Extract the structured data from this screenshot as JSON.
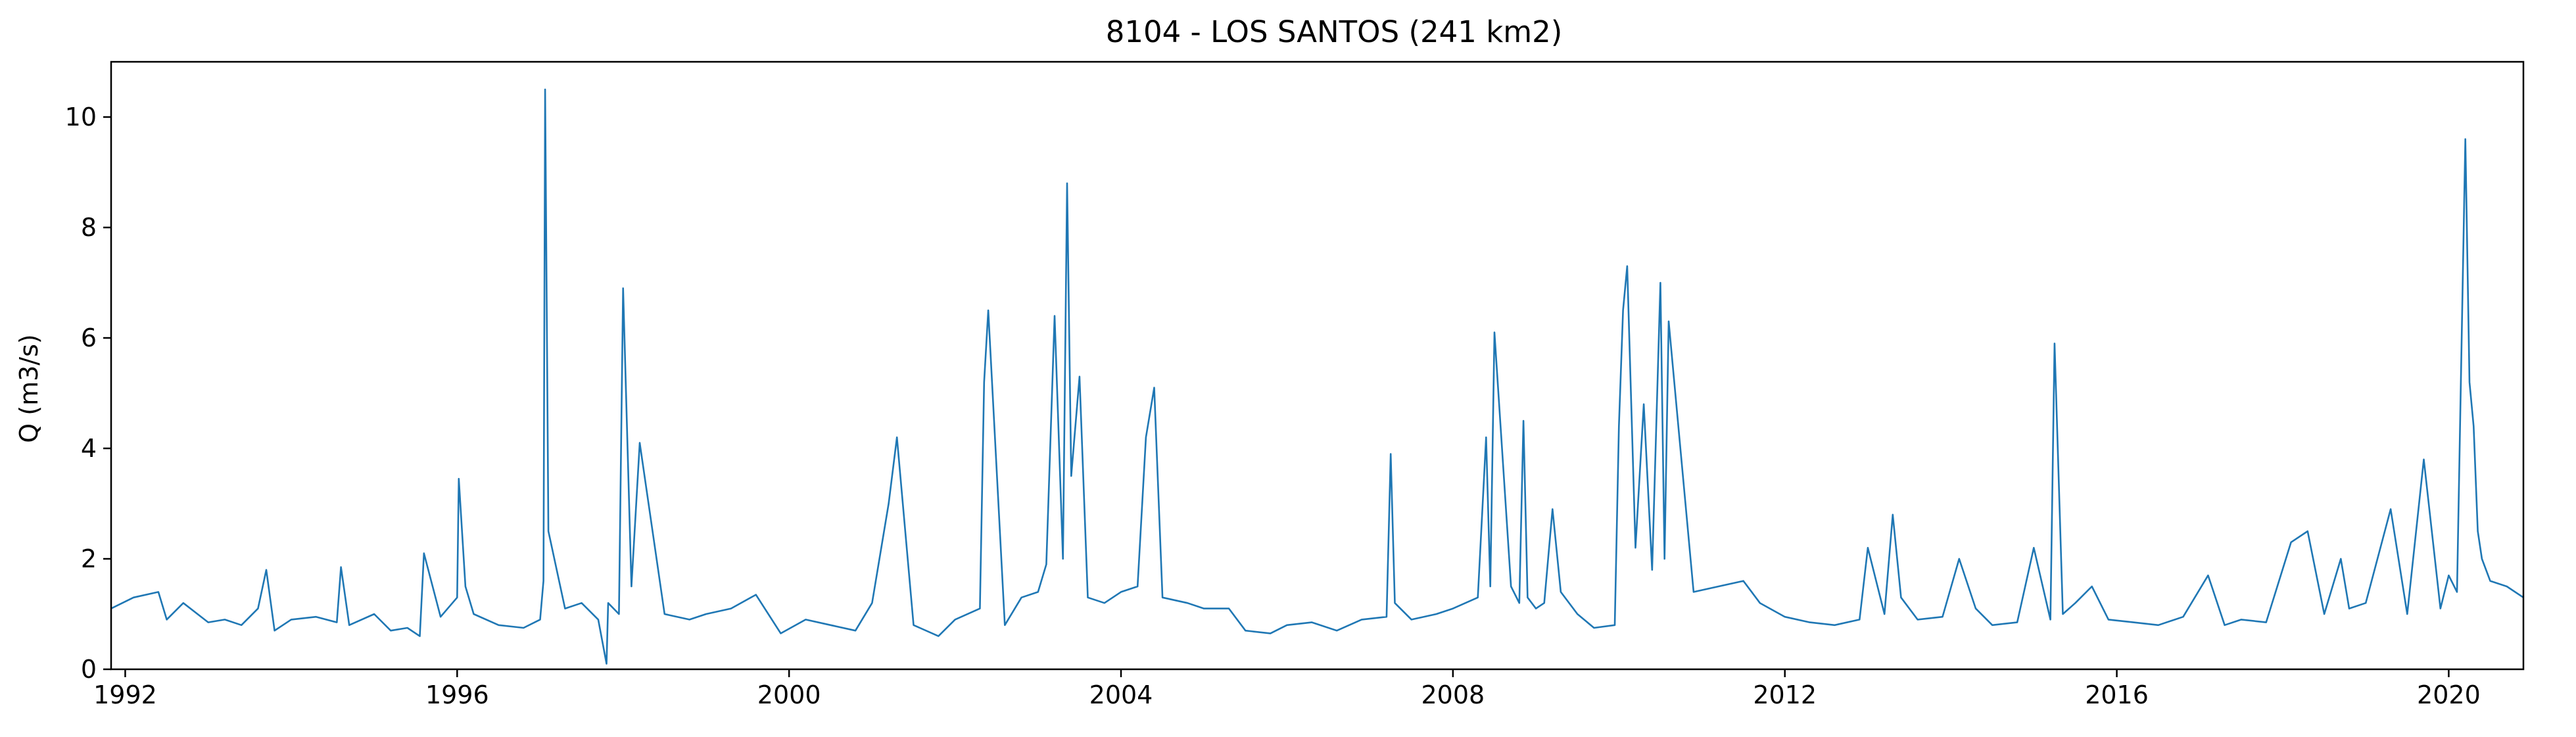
{
  "chart_data": {
    "type": "line",
    "title": "8104 - LOS SANTOS (241 km2)",
    "xlabel": "",
    "ylabel": "Q (m3/s)",
    "xlim": [
      1991.83,
      2020.9
    ],
    "ylim": [
      0,
      11
    ],
    "x_ticks": [
      1992,
      1996,
      2000,
      2004,
      2008,
      2012,
      2016,
      2020
    ],
    "y_ticks": [
      0,
      2,
      4,
      6,
      8,
      10
    ],
    "grid": false,
    "series": [
      {
        "name": "Q",
        "color": "#1f77b4",
        "x": [
          1991.83,
          1992.1,
          1992.4,
          1992.5,
          1992.7,
          1993.0,
          1993.2,
          1993.4,
          1993.6,
          1993.7,
          1993.8,
          1994.0,
          1994.3,
          1994.55,
          1994.6,
          1994.7,
          1995.0,
          1995.2,
          1995.4,
          1995.55,
          1995.6,
          1995.8,
          1996.0,
          1996.02,
          1996.1,
          1996.2,
          1996.5,
          1996.8,
          1997.0,
          1997.04,
          1997.06,
          1997.1,
          1997.3,
          1997.5,
          1997.7,
          1997.8,
          1997.82,
          1997.95,
          1998.0,
          1998.1,
          1998.2,
          1998.5,
          1998.8,
          1999.0,
          1999.3,
          1999.6,
          1999.9,
          2000.2,
          2000.5,
          2000.8,
          2001.0,
          2001.2,
          2001.3,
          2001.5,
          2001.8,
          2002.0,
          2002.3,
          2002.35,
          2002.4,
          2002.6,
          2002.8,
          2003.0,
          2003.1,
          2003.2,
          2003.3,
          2003.35,
          2003.4,
          2003.5,
          2003.6,
          2003.8,
          2004.0,
          2004.2,
          2004.3,
          2004.4,
          2004.5,
          2004.8,
          2005.0,
          2005.3,
          2005.5,
          2005.8,
          2006.0,
          2006.3,
          2006.6,
          2006.9,
          2007.2,
          2007.25,
          2007.3,
          2007.5,
          2007.8,
          2008.0,
          2008.3,
          2008.4,
          2008.45,
          2008.5,
          2008.7,
          2008.8,
          2008.85,
          2008.9,
          2009.0,
          2009.1,
          2009.2,
          2009.3,
          2009.5,
          2009.7,
          2009.95,
          2010.0,
          2010.05,
          2010.1,
          2010.2,
          2010.3,
          2010.4,
          2010.5,
          2010.55,
          2010.6,
          2010.9,
          2011.2,
          2011.5,
          2011.7,
          2012.0,
          2012.3,
          2012.6,
          2012.9,
          2013.0,
          2013.2,
          2013.3,
          2013.4,
          2013.6,
          2013.9,
          2014.1,
          2014.3,
          2014.5,
          2014.8,
          2015.0,
          2015.2,
          2015.25,
          2015.35,
          2015.5,
          2015.7,
          2015.9,
          2016.2,
          2016.5,
          2016.8,
          2017.1,
          2017.3,
          2017.5,
          2017.8,
          2018.1,
          2018.3,
          2018.5,
          2018.7,
          2018.8,
          2019.0,
          2019.3,
          2019.5,
          2019.7,
          2019.9,
          2020.0,
          2020.1,
          2020.2,
          2020.25,
          2020.3,
          2020.35,
          2020.4,
          2020.5,
          2020.7,
          2020.9
        ],
        "values": [
          1.1,
          1.3,
          1.4,
          0.9,
          1.2,
          0.85,
          0.9,
          0.8,
          1.1,
          1.8,
          0.7,
          0.9,
          0.95,
          0.85,
          1.85,
          0.8,
          1.0,
          0.7,
          0.75,
          0.6,
          2.1,
          0.95,
          1.3,
          3.45,
          1.5,
          1.0,
          0.8,
          0.75,
          0.9,
          1.6,
          10.5,
          2.5,
          1.1,
          1.2,
          0.9,
          0.1,
          1.2,
          1.0,
          6.9,
          1.5,
          4.1,
          1.0,
          0.9,
          1.0,
          1.1,
          1.35,
          0.65,
          0.9,
          0.8,
          0.7,
          1.2,
          3.0,
          4.2,
          0.8,
          0.6,
          0.9,
          1.1,
          5.2,
          6.5,
          0.8,
          1.3,
          1.4,
          1.9,
          6.4,
          2.0,
          8.8,
          3.5,
          5.3,
          1.3,
          1.2,
          1.4,
          1.5,
          4.2,
          5.1,
          1.3,
          1.2,
          1.1,
          1.1,
          0.7,
          0.65,
          0.8,
          0.85,
          0.7,
          0.9,
          0.95,
          3.9,
          1.2,
          0.9,
          1.0,
          1.1,
          1.3,
          4.2,
          1.5,
          6.1,
          1.5,
          1.2,
          4.5,
          1.3,
          1.1,
          1.2,
          2.9,
          1.4,
          1.0,
          0.75,
          0.8,
          4.4,
          6.5,
          7.3,
          2.2,
          4.8,
          1.8,
          7.0,
          2.0,
          6.3,
          1.4,
          1.5,
          1.6,
          1.2,
          0.95,
          0.85,
          0.8,
          0.9,
          2.2,
          1.0,
          2.8,
          1.3,
          0.9,
          0.95,
          2.0,
          1.1,
          0.8,
          0.85,
          2.2,
          0.9,
          5.9,
          1.0,
          1.2,
          1.5,
          0.9,
          0.85,
          0.8,
          0.95,
          1.7,
          0.8,
          0.9,
          0.85,
          2.3,
          2.5,
          1.0,
          2.0,
          1.1,
          1.2,
          2.9,
          1.0,
          3.8,
          1.1,
          1.7,
          1.4,
          9.6,
          5.2,
          4.4,
          2.5,
          2.0,
          1.6,
          1.5,
          1.3
        ]
      }
    ]
  }
}
